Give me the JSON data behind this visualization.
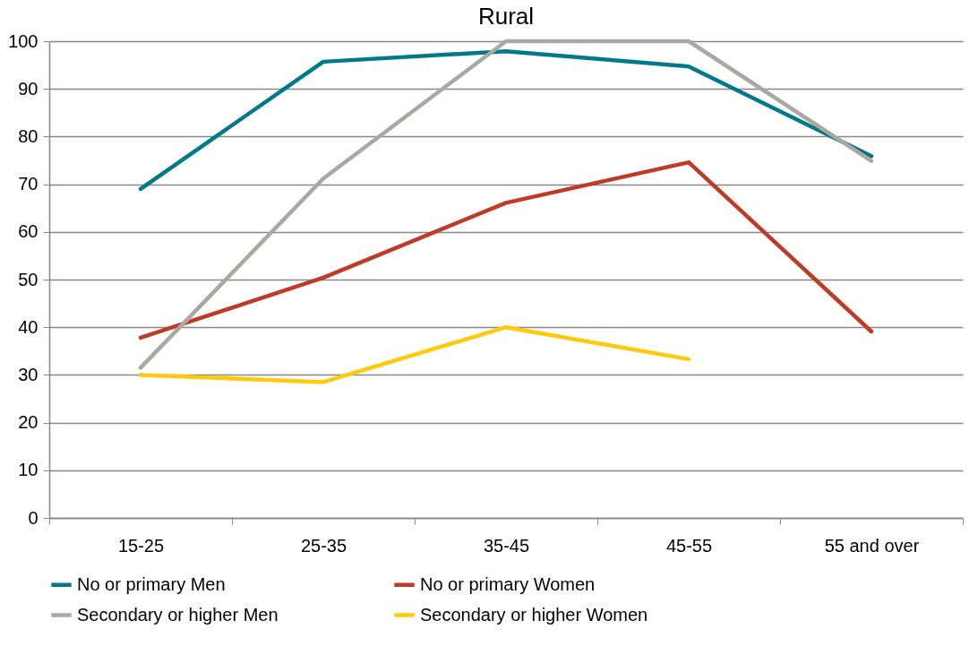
{
  "chart_data": {
    "type": "line",
    "title": "Rural",
    "categories": [
      "15-25",
      "25-35",
      "35-45",
      "45-55",
      "55 and over"
    ],
    "ylim": [
      0,
      100
    ],
    "yticks": [
      0,
      10,
      20,
      30,
      40,
      50,
      60,
      70,
      80,
      90,
      100
    ],
    "grid": "y",
    "legend": "bottom",
    "marker": "none",
    "line_style": "solid",
    "series": [
      {
        "name": "No or primary Men",
        "color": "#00798a",
        "values": [
          69,
          95.7,
          97.9,
          94.7,
          75.9
        ]
      },
      {
        "name": "No or primary Women",
        "color": "#be3b27",
        "values": [
          37.8,
          50.4,
          66.1,
          74.6,
          39.1
        ]
      },
      {
        "name": "Secondary or higher Men",
        "color": "#aaa89f",
        "values": [
          31.5,
          71.2,
          100,
          100,
          74.9
        ]
      },
      {
        "name": "Secondary or higher Women",
        "color": "#ffc90c",
        "values": [
          30,
          28.5,
          40,
          33.3,
          null
        ]
      }
    ]
  }
}
